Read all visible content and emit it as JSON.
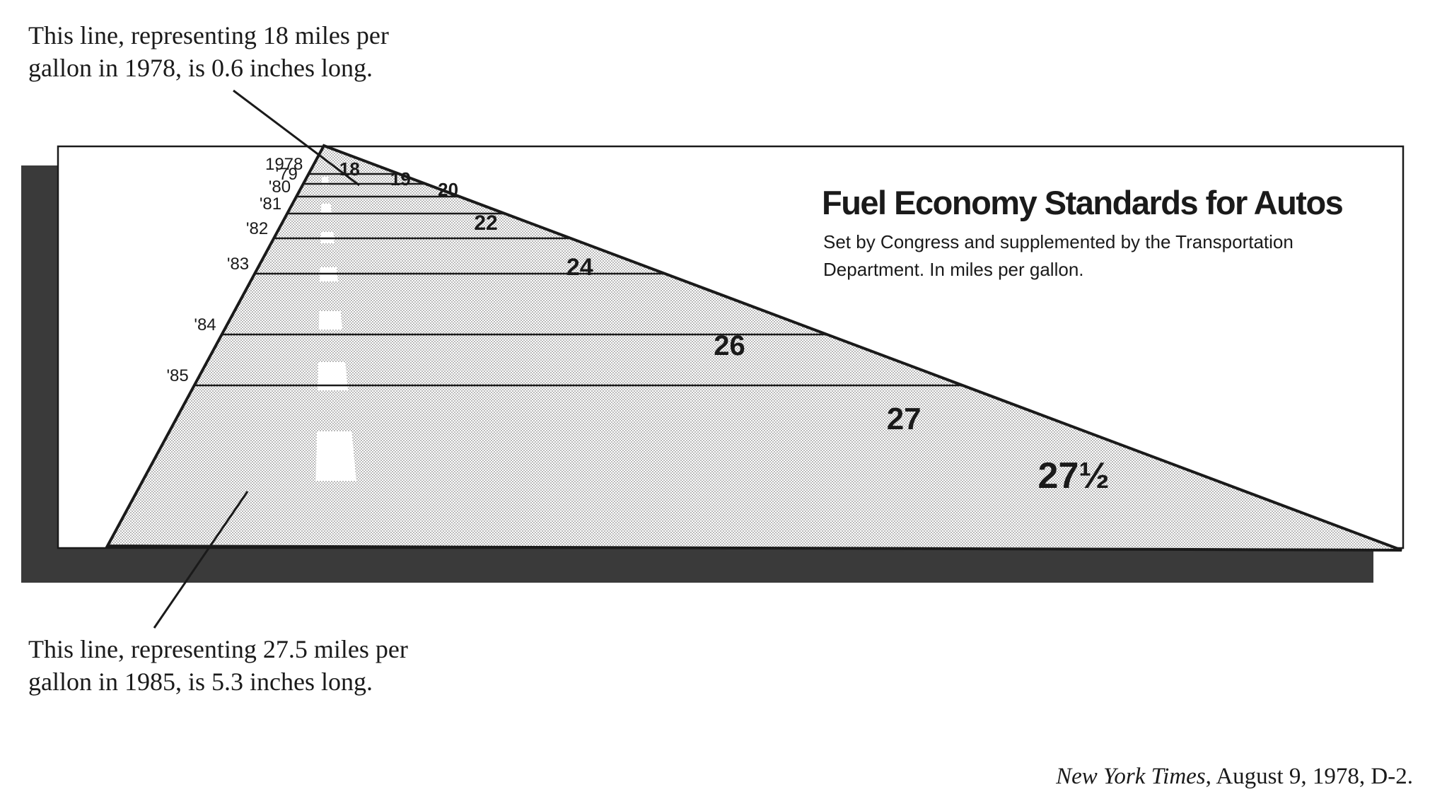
{
  "chart_data": {
    "type": "bar",
    "title": "Fuel Economy Standards for Autos",
    "subtitle_line1": "Set by Congress and supplemented by the Transportation",
    "subtitle_line2": "Department. In miles per gallon.",
    "categories": [
      "1978",
      "'79",
      "'80",
      "'81",
      "'82",
      "'83",
      "'84",
      "'85"
    ],
    "values": [
      18,
      19,
      20,
      22,
      24,
      26,
      27,
      27.5
    ],
    "value_labels": [
      "18",
      "19",
      "20",
      "22",
      "24",
      "26",
      "27",
      "27½"
    ],
    "grid": false
  },
  "annotations": {
    "top_line1": "This line, representing 18 miles per",
    "top_line2": "gallon in 1978, is 0.6 inches long.",
    "bottom_line1": "This line, representing 27.5 miles per",
    "bottom_line2": "gallon in 1985, is 5.3 inches long."
  },
  "source": {
    "publication": "New York Times",
    "rest": ", August 9, 1978, D-2."
  },
  "colors": {
    "shadow": "#3a3a3a",
    "ink": "#1a1a1a",
    "stipple": "#b8b8b8"
  }
}
